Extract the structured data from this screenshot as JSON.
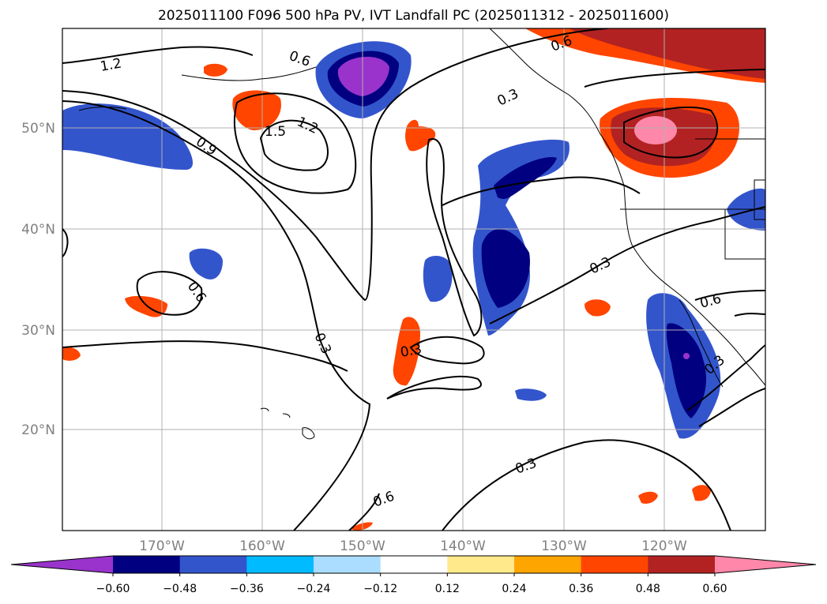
{
  "title": "2025011100 F096 500 hPa PV, IVT Landfall PC (2025011312 - 2025011600)",
  "map": {
    "lat_ticks": [
      "50°N",
      "40°N",
      "30°N",
      "20°N"
    ],
    "lon_ticks": [
      "170°W",
      "160°W",
      "150°W",
      "140°W",
      "130°W",
      "120°W"
    ],
    "contour_labels": [
      "1.2",
      "0.6",
      "1.5",
      "1.2",
      "0.9",
      "0.6",
      "0.3",
      "0.3",
      "0.3",
      "0.3",
      "0.6",
      "0.3",
      "0.6",
      "0.3",
      "0.6"
    ],
    "grid": true
  },
  "colorbar": {
    "colors": [
      "#9933cc",
      "#000080",
      "#3355cc",
      "#00bbff",
      "#aaddff",
      "#ffffff",
      "#ffe98a",
      "#ffa500",
      "#ff4500",
      "#b22222",
      "#ff88aa"
    ],
    "labels": [
      "−0.60",
      "−0.48",
      "−0.36",
      "−0.24",
      "−0.12",
      "0.12",
      "0.24",
      "0.36",
      "0.48",
      "0.60"
    ]
  }
}
